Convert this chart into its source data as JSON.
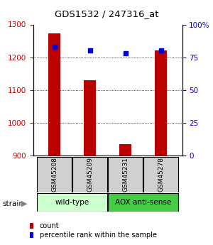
{
  "title": "GDS1532 / 247316_at",
  "samples": [
    "GSM45208",
    "GSM45209",
    "GSM45231",
    "GSM45278"
  ],
  "counts": [
    1272,
    1130,
    935,
    1220
  ],
  "percentiles": [
    83,
    80,
    78,
    80
  ],
  "ylim_left": [
    900,
    1300
  ],
  "ylim_right": [
    0,
    100
  ],
  "yticks_left": [
    900,
    1000,
    1100,
    1200,
    1300
  ],
  "yticks_right": [
    0,
    25,
    50,
    75,
    100
  ],
  "ytick_labels_right": [
    "0",
    "25",
    "50",
    "75",
    "100%"
  ],
  "bar_color": "#bb0000",
  "dot_color": "#0000cc",
  "groups": [
    {
      "label": "wild-type",
      "color": "#ccffcc",
      "start": 0,
      "end": 1
    },
    {
      "label": "AOX anti-sense",
      "color": "#44cc44",
      "start": 2,
      "end": 3
    }
  ],
  "strain_label": "strain",
  "legend_count_label": "count",
  "legend_pct_label": "percentile rank within the sample",
  "label_color_left": "#cc0000",
  "label_color_right": "#0000cc",
  "sample_box_color": "#d0d0d0",
  "bar_width": 0.35
}
